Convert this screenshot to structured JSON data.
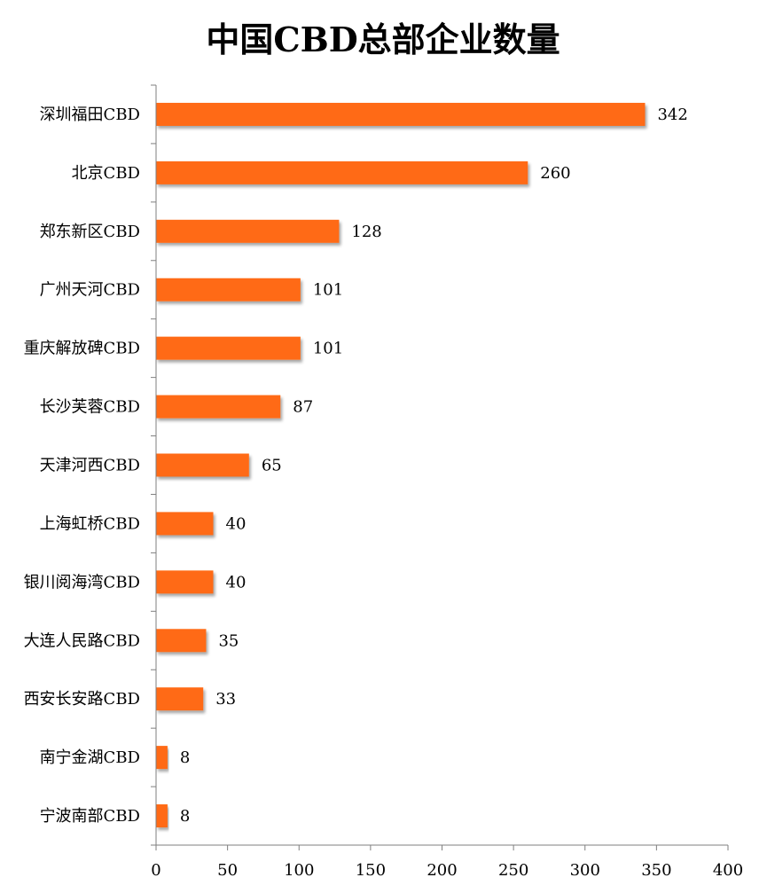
{
  "chart_data": {
    "type": "bar",
    "orientation": "horizontal",
    "title": "中国CBD总部企业数量",
    "categories": [
      "深圳福田CBD",
      "北京CBD",
      "郑东新区CBD",
      "广州天河CBD",
      "重庆解放碑CBD",
      "长沙芙蓉CBD",
      "天津河西CBD",
      "上海虹桥CBD",
      "银川阅海湾CBD",
      "大连人民路CBD",
      "西安长安路CBD",
      "南宁金湖CBD",
      "宁波南部CBD"
    ],
    "values": [
      342,
      260,
      128,
      101,
      101,
      87,
      65,
      40,
      40,
      35,
      33,
      8,
      8
    ],
    "xlabel": "",
    "ylabel": "",
    "xlim": [
      0,
      400
    ],
    "xticks": [
      0,
      50,
      100,
      150,
      200,
      250,
      300,
      350,
      400
    ],
    "grid": false,
    "legend": "none",
    "bar_color": "#ff6a13",
    "bar_shadow": true
  }
}
